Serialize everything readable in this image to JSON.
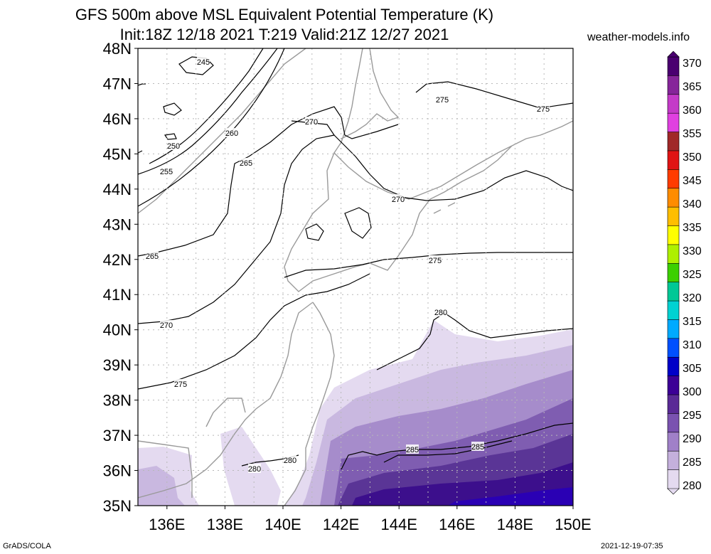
{
  "header": {
    "title_line1": "GFS 500m above MSL Equivalent Potential Temperature (K)",
    "title_line2": "Init:18Z 12/18 2021 T:219 Valid:21Z 12/27 2021",
    "site": "weather-models.info"
  },
  "footer": {
    "left": "GrADS/COLA",
    "right": "2021-12-19-07:35"
  },
  "map": {
    "lat_labels": [
      "48N",
      "47N",
      "46N",
      "45N",
      "44N",
      "43N",
      "42N",
      "41N",
      "40N",
      "39N",
      "38N",
      "37N",
      "36N",
      "35N"
    ],
    "lon_labels": [
      "136E",
      "138E",
      "140E",
      "142E",
      "144E",
      "146E",
      "148E",
      "150E"
    ],
    "extent": {
      "lon_min": 135,
      "lon_max": 150,
      "lat_min": 35,
      "lat_max": 48
    },
    "contour_labels": [
      "245",
      "250",
      "255",
      "260",
      "265",
      "270",
      "270",
      "270",
      "275",
      "275",
      "275",
      "275",
      "265",
      "270",
      "280",
      "280",
      "280",
      "285",
      "285"
    ]
  },
  "colorbar": {
    "levels": [
      "370",
      "365",
      "360",
      "355",
      "350",
      "345",
      "340",
      "335",
      "330",
      "325",
      "320",
      "315",
      "310",
      "305",
      "300",
      "295",
      "290",
      "285",
      "280"
    ],
    "colors": [
      "#4a0070",
      "#86259a",
      "#c43ac8",
      "#e040e0",
      "#a02828",
      "#e01414",
      "#ff3c00",
      "#ff8c00",
      "#ffbe00",
      "#ffff00",
      "#aef000",
      "#3cd000",
      "#00c896",
      "#00d2d2",
      "#00aaff",
      "#0050ff",
      "#0000c8",
      "#3c0096",
      "#5a2a96",
      "#7a52b0",
      "#a080c8",
      "#c4b0dc",
      "#e4daf0"
    ]
  }
}
